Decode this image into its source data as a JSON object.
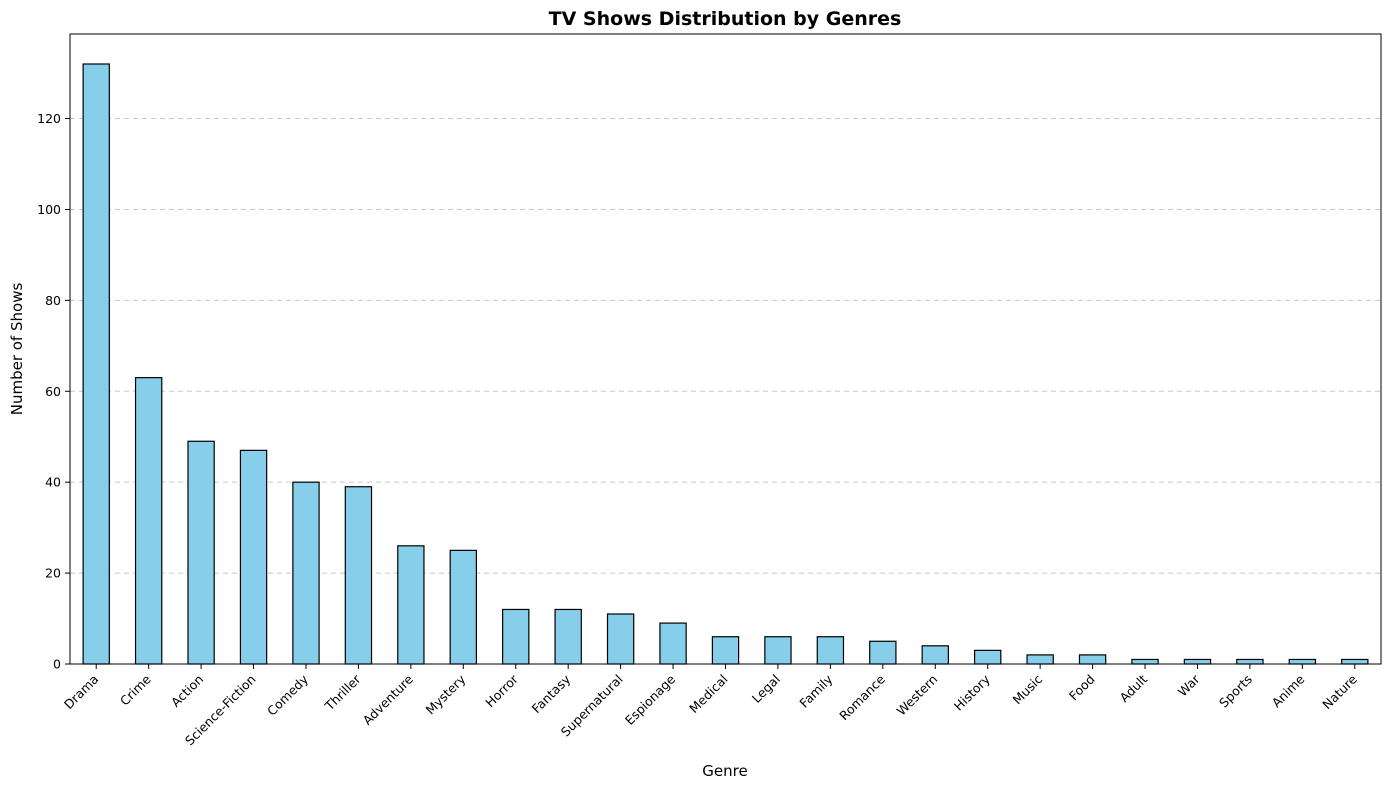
{
  "chart_data": {
    "type": "bar",
    "title": "TV Shows Distribution by Genres",
    "xlabel": "Genre",
    "ylabel": "Number of Shows",
    "categories": [
      "Drama",
      "Crime",
      "Action",
      "Science-Fiction",
      "Comedy",
      "Thriller",
      "Adventure",
      "Mystery",
      "Horror",
      "Fantasy",
      "Supernatural",
      "Espionage",
      "Medical",
      "Legal",
      "Family",
      "Romance",
      "Western",
      "History",
      "Music",
      "Food",
      "Adult",
      "War",
      "Sports",
      "Anime",
      "Nature"
    ],
    "values": [
      132,
      63,
      49,
      47,
      40,
      39,
      26,
      25,
      12,
      12,
      11,
      9,
      6,
      6,
      6,
      5,
      4,
      3,
      2,
      2,
      1,
      1,
      1,
      1,
      1
    ],
    "ylim": [
      0,
      138.6
    ],
    "yticks": [
      0,
      20,
      40,
      60,
      80,
      100,
      120
    ],
    "grid": "y-axis dashed",
    "legend": "none",
    "colors": {
      "bar_fill": "#87ceeb",
      "bar_edge": "#000000",
      "grid": "#c8c8c8",
      "axis": "#000000"
    }
  }
}
